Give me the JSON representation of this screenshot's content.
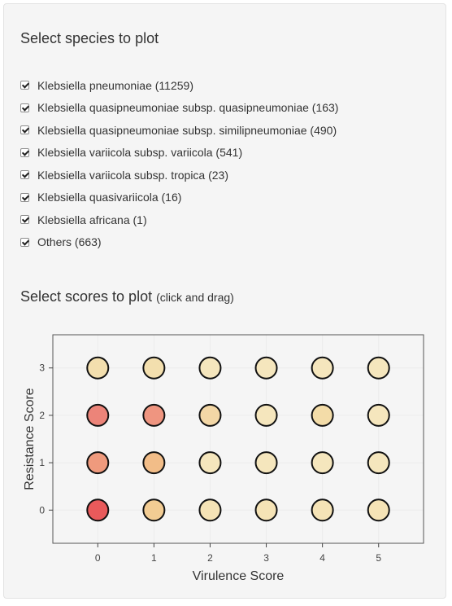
{
  "species_section": {
    "title": "Select species to plot",
    "items": [
      {
        "label": "Klebsiella pneumoniae (11259)",
        "checked": true
      },
      {
        "label": "Klebsiella quasipneumoniae subsp. quasipneumoniae (163)",
        "checked": true
      },
      {
        "label": "Klebsiella quasipneumoniae subsp. similipneumoniae (490)",
        "checked": true
      },
      {
        "label": "Klebsiella variicola subsp. variicola (541)",
        "checked": true
      },
      {
        "label": "Klebsiella variicola subsp. tropica (23)",
        "checked": true
      },
      {
        "label": "Klebsiella quasivariicola (16)",
        "checked": true
      },
      {
        "label": "Klebsiella africana (1)",
        "checked": true
      },
      {
        "label": "Others (663)",
        "checked": true
      }
    ]
  },
  "scores_section": {
    "title": "Select scores to plot",
    "hint": "(click and drag)"
  },
  "chart_data": {
    "type": "scatter",
    "xlabel": "Virulence Score",
    "ylabel": "Resistance Score",
    "x_ticks": [
      "0",
      "1",
      "2",
      "3",
      "4",
      "5"
    ],
    "y_ticks": [
      "0",
      "1",
      "2",
      "3"
    ],
    "xlim": [
      -0.8,
      5.8
    ],
    "ylim": [
      -0.7,
      3.7
    ],
    "grid": true,
    "points": [
      {
        "x": 0,
        "y": 3,
        "color": "#f3dfae"
      },
      {
        "x": 1,
        "y": 3,
        "color": "#f3dfae"
      },
      {
        "x": 2,
        "y": 3,
        "color": "#f5e6bd"
      },
      {
        "x": 3,
        "y": 3,
        "color": "#f5e6bd"
      },
      {
        "x": 4,
        "y": 3,
        "color": "#f5e6bd"
      },
      {
        "x": 5,
        "y": 3,
        "color": "#f5e6bd"
      },
      {
        "x": 0,
        "y": 2,
        "color": "#ec8479"
      },
      {
        "x": 1,
        "y": 2,
        "color": "#ef9580"
      },
      {
        "x": 2,
        "y": 2,
        "color": "#f3d7a6"
      },
      {
        "x": 3,
        "y": 2,
        "color": "#f5e6bd"
      },
      {
        "x": 4,
        "y": 2,
        "color": "#f3dca8"
      },
      {
        "x": 5,
        "y": 2,
        "color": "#f5e6bd"
      },
      {
        "x": 0,
        "y": 1,
        "color": "#ef9a7d"
      },
      {
        "x": 1,
        "y": 1,
        "color": "#f2bd88"
      },
      {
        "x": 2,
        "y": 1,
        "color": "#f5e6bd"
      },
      {
        "x": 3,
        "y": 1,
        "color": "#f5e6bd"
      },
      {
        "x": 4,
        "y": 1,
        "color": "#f5e6bd"
      },
      {
        "x": 5,
        "y": 1,
        "color": "#f5e6bd"
      },
      {
        "x": 0,
        "y": 0,
        "color": "#e95a5b"
      },
      {
        "x": 1,
        "y": 0,
        "color": "#f2cc93"
      },
      {
        "x": 2,
        "y": 0,
        "color": "#f5e3b6"
      },
      {
        "x": 3,
        "y": 0,
        "color": "#f5e3b6"
      },
      {
        "x": 4,
        "y": 0,
        "color": "#f5e3b6"
      },
      {
        "x": 5,
        "y": 0,
        "color": "#f5e3b6"
      }
    ]
  }
}
